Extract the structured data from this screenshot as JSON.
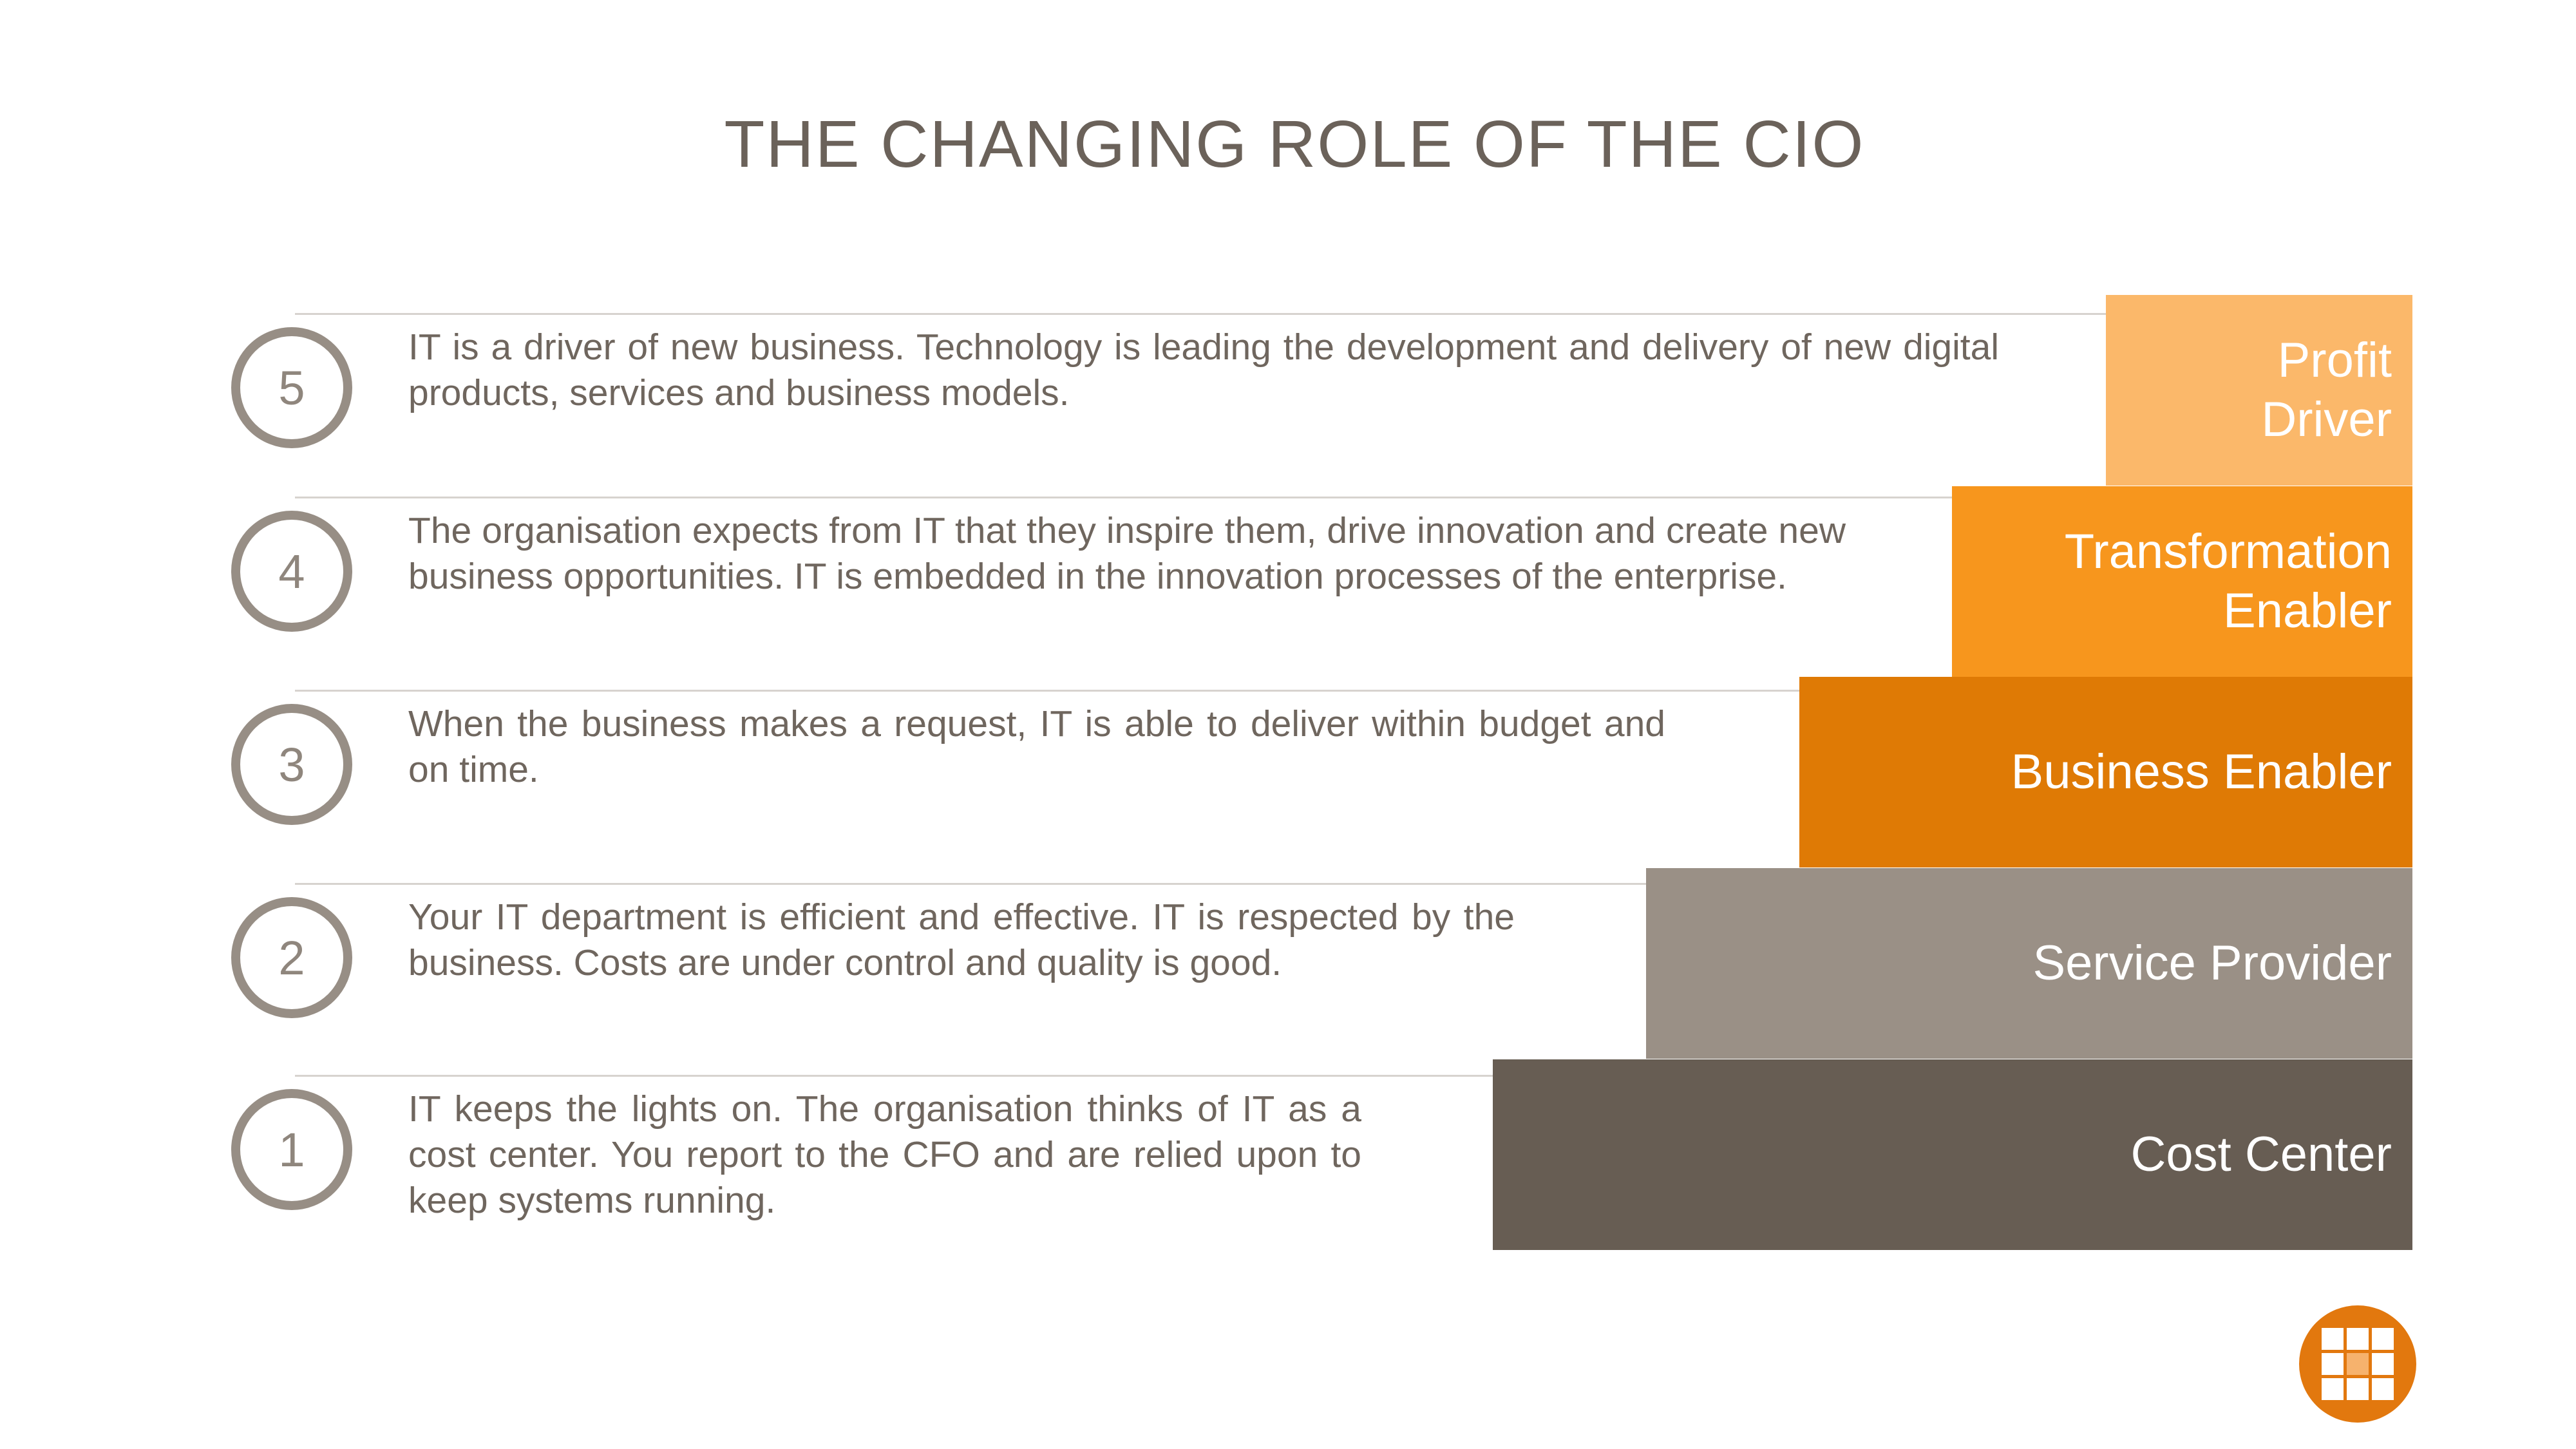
{
  "title": "THE CHANGING ROLE OF THE CIO",
  "levels": [
    {
      "number": "5",
      "description": "IT is a driver of new business. Technology is leading the development and delivery of new digital products, services and business models.",
      "stage": "Profit\nDriver",
      "stage_color": "#fbb86a"
    },
    {
      "number": "4",
      "description": "The organisation expects from IT that they inspire them, drive innovation and create new business opportunities. IT is embedded in the innovation processes of the enterprise.",
      "stage": "Transformation\nEnabler",
      "stage_color": "#f7961d"
    },
    {
      "number": "3",
      "description": "When the business makes a request, IT is able to deliver within budget and on time.",
      "stage": "Business Enabler",
      "stage_color": "#df7a05"
    },
    {
      "number": "2",
      "description": "Your IT department is efficient and effective. IT is respected by the business. Costs are under control and quality is good.",
      "stage": "Service Provider",
      "stage_color": "#9a9086"
    },
    {
      "number": "1",
      "description": "IT keeps the lights on. The organisation thinks of IT as a cost center. You report to the CFO and are relied upon to keep systems running.",
      "stage": "Cost Center",
      "stage_color": "#675d53"
    }
  ],
  "logo": {
    "icon": "grid-logo-icon",
    "color": "#e2780e"
  }
}
